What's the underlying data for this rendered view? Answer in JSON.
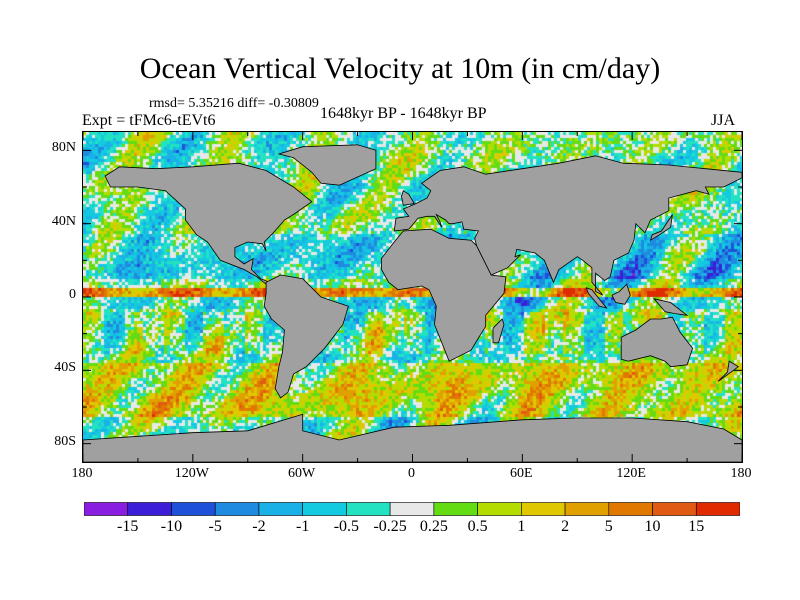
{
  "title": "Ocean Vertical Velocity at 10m (in cm/day)",
  "stats": "rmsd= 5.35216 diff= -0.30809",
  "experiment": "Expt = tFMc6-tEVt6",
  "period": "1648kyr BP - 1648kyr BP",
  "season": "JJA",
  "y_axis_labels": [
    {
      "label": "80N",
      "lat": 80
    },
    {
      "label": "40N",
      "lat": 40
    },
    {
      "label": "0",
      "lat": 0
    },
    {
      "label": "40S",
      "lat": -40
    },
    {
      "label": "80S",
      "lat": -80
    }
  ],
  "x_axis_labels": [
    {
      "label": "180",
      "lon": -180
    },
    {
      "label": "120W",
      "lon": -120
    },
    {
      "label": "60W",
      "lon": -60
    },
    {
      "label": "0",
      "lon": 0
    },
    {
      "label": "60E",
      "lon": 60
    },
    {
      "label": "120E",
      "lon": 120
    },
    {
      "label": "180",
      "lon": 180
    }
  ],
  "colorbar": {
    "colors": [
      "#8a1ee0",
      "#3c1ed8",
      "#1e50d8",
      "#1e8ae0",
      "#1ab2e6",
      "#14cae0",
      "#22e2c2",
      "#e8e8e8",
      "#64dc14",
      "#b4dc00",
      "#e0c800",
      "#e0a000",
      "#e07800",
      "#e05a14",
      "#e02a00"
    ],
    "labels": [
      "-15",
      "-10",
      "-5",
      "-2",
      "-1",
      "-0.5",
      "-0.25",
      "0.25",
      "0.5",
      "1",
      "2",
      "5",
      "10",
      "15"
    ]
  },
  "land_color": "#a0a0a0"
}
